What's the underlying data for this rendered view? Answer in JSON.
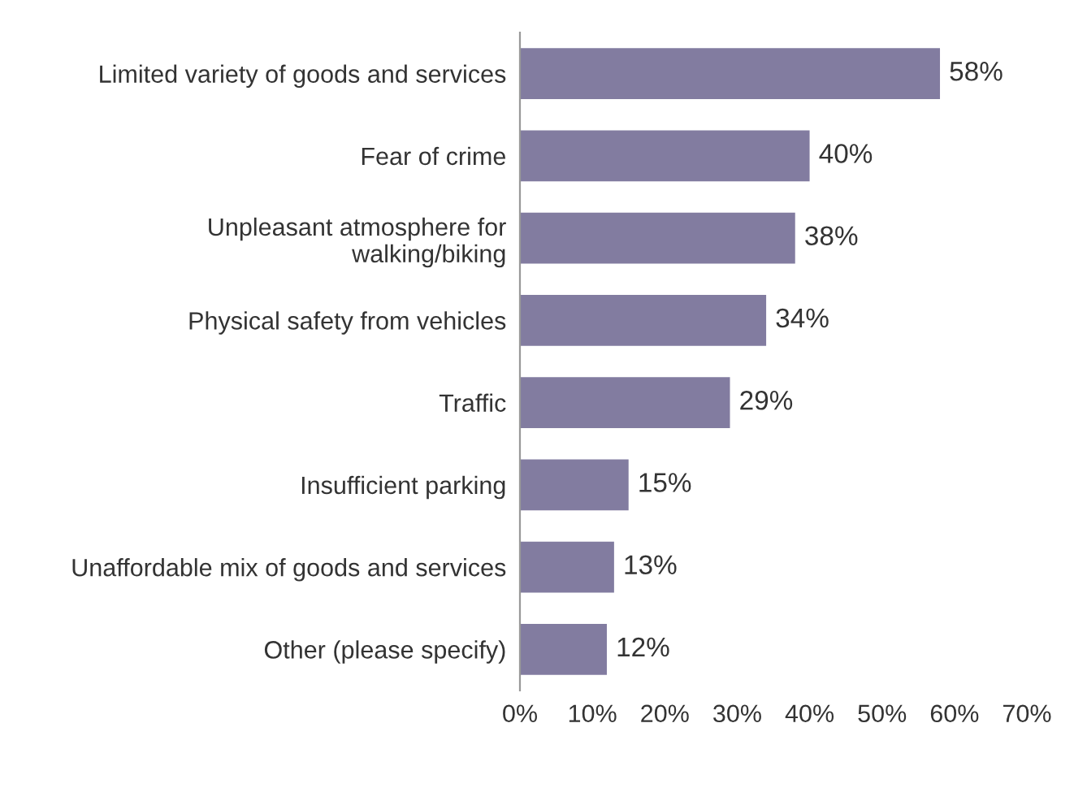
{
  "chart_data": {
    "type": "bar",
    "orientation": "horizontal",
    "categories": [
      "Limited variety of goods and services",
      "Fear of crime",
      "Unpleasant atmosphere for\nwalking/biking",
      "Physical safety from vehicles",
      "Traffic",
      "Insufficient parking",
      "Unaffordable mix of goods and services",
      "Other (please specify)"
    ],
    "values": [
      58,
      40,
      38,
      34,
      29,
      15,
      13,
      12
    ],
    "value_labels": [
      "58%",
      "40%",
      "38%",
      "34%",
      "29%",
      "15%",
      "13%",
      "12%"
    ],
    "color": "#827ca0",
    "xlim": [
      0,
      70
    ],
    "xticks": [
      {
        "value": 0,
        "label": "0%"
      },
      {
        "value": 10,
        "label": "10%"
      },
      {
        "value": 20,
        "label": "20%"
      },
      {
        "value": 30,
        "label": "30%"
      },
      {
        "value": 40,
        "label": "40%"
      },
      {
        "value": 50,
        "label": "50%"
      },
      {
        "value": 60,
        "label": "60%"
      },
      {
        "value": 70,
        "label": "70%"
      }
    ],
    "grid": false,
    "legend": false
  }
}
